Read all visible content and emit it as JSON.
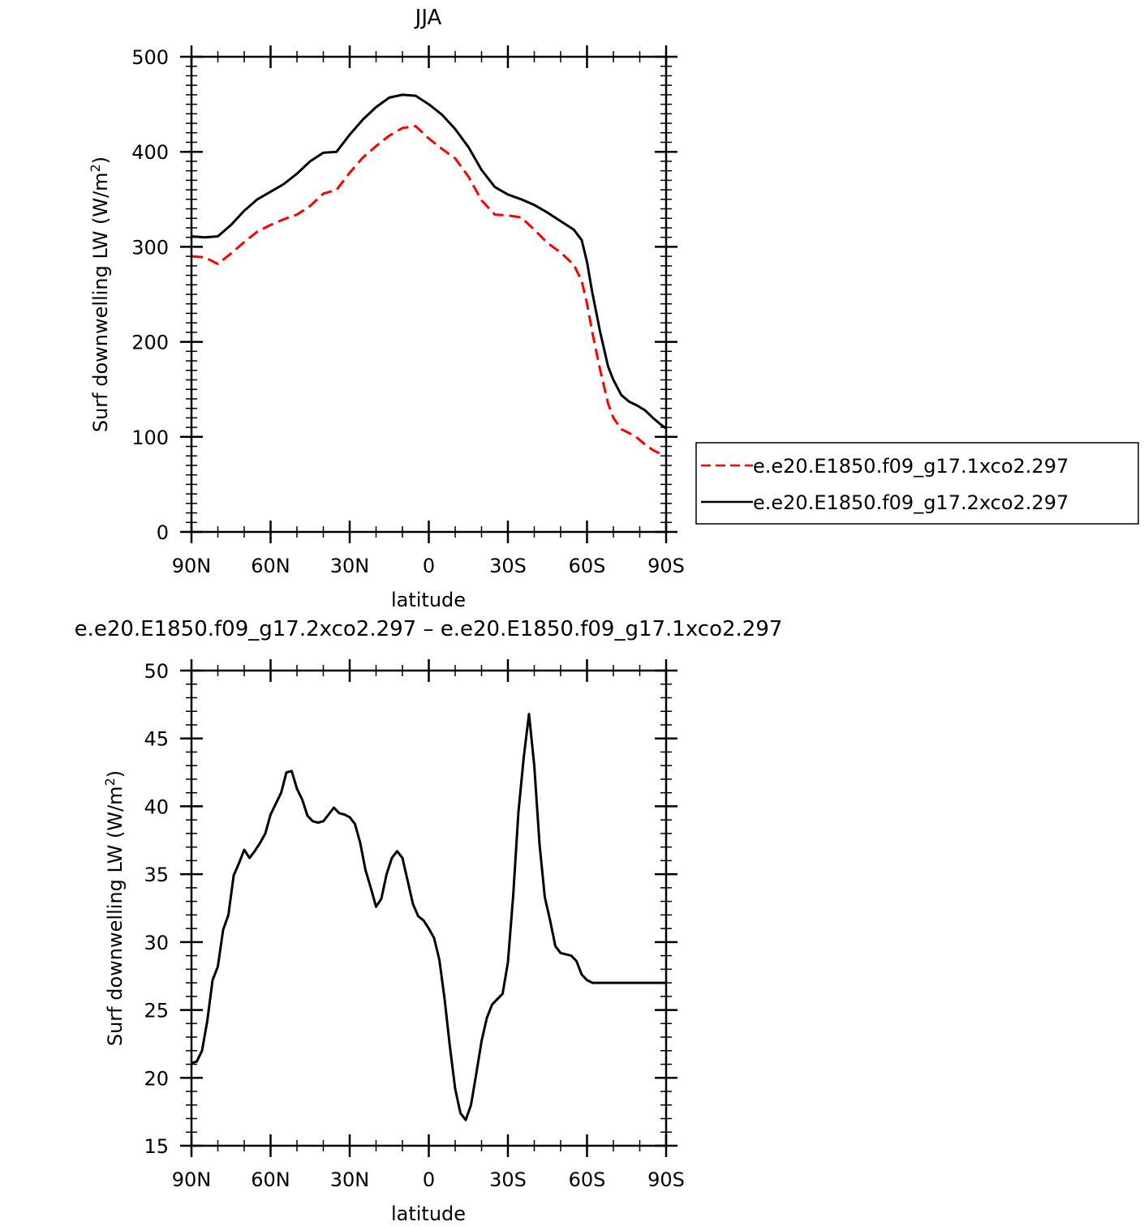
{
  "chart_data": [
    {
      "type": "line",
      "title": "JJA",
      "xlabel": "latitude",
      "ylabel": "Surf downwelling LW (W/m",
      "ylabel_sup": "2",
      "ylabel_close": ")",
      "xlim": [
        90,
        -90
      ],
      "ylim": [
        0,
        500
      ],
      "yticks": [
        0,
        100,
        200,
        300,
        400,
        500
      ],
      "xticks": [
        90,
        60,
        30,
        0,
        -30,
        -60,
        -90
      ],
      "xtick_labels": [
        "90N",
        "60N",
        "30N",
        "0",
        "30S",
        "60S",
        "90S"
      ],
      "legend_position": "right",
      "series": [
        {
          "name": "e.e20.E1850.f09_g17.1xco2.297",
          "color": "#ff0000",
          "dash": "dashed",
          "x": [
            90,
            85,
            80,
            75,
            70,
            65,
            60,
            55,
            50,
            45,
            40,
            35,
            30,
            25,
            20,
            15,
            10,
            5,
            0,
            -5,
            -10,
            -15,
            -20,
            -25,
            -30,
            -35,
            -40,
            -45,
            -50,
            -55,
            -58,
            -60,
            -62,
            -65,
            -68,
            -70,
            -73,
            -76,
            -79,
            -82,
            -85,
            -88,
            -90
          ],
          "y": [
            290,
            289,
            282,
            293,
            305,
            316,
            323,
            329,
            334,
            343,
            356,
            360,
            378,
            394,
            406,
            417,
            425,
            427,
            414,
            403,
            393,
            374,
            349,
            334,
            333,
            331,
            318,
            304,
            294,
            281,
            264,
            240,
            210,
            170,
            135,
            120,
            108,
            104,
            99,
            92,
            86,
            82,
            80
          ]
        },
        {
          "name": "e.e20.E1850.f09_g17.2xco2.297",
          "color": "#000000",
          "dash": "solid",
          "x": [
            90,
            85,
            80,
            75,
            70,
            65,
            60,
            55,
            50,
            45,
            40,
            35,
            30,
            25,
            20,
            15,
            10,
            5,
            0,
            -5,
            -10,
            -15,
            -20,
            -25,
            -30,
            -35,
            -40,
            -45,
            -50,
            -55,
            -58,
            -60,
            -62,
            -65,
            -68,
            -70,
            -73,
            -76,
            -79,
            -82,
            -85,
            -88,
            -90
          ],
          "y": [
            311,
            310,
            311,
            323,
            338,
            350,
            358,
            366,
            377,
            390,
            399,
            400,
            418,
            434,
            447,
            457,
            460,
            459,
            450,
            439,
            424,
            405,
            381,
            363,
            355,
            350,
            344,
            336,
            327,
            318,
            307,
            284,
            252,
            210,
            174,
            160,
            144,
            137,
            133,
            128,
            120,
            113,
            109
          ]
        }
      ]
    },
    {
      "type": "line",
      "title": "e.e20.E1850.f09_g17.2xco2.297 – e.e20.E1850.f09_g17.1xco2.297",
      "xlabel": "latitude",
      "ylabel": "Surf downwelling LW (W/m",
      "ylabel_sup": "2",
      "ylabel_close": ")",
      "xlim": [
        90,
        -90
      ],
      "ylim": [
        15,
        50
      ],
      "yticks": [
        15,
        20,
        25,
        30,
        35,
        40,
        45,
        50
      ],
      "xticks": [
        90,
        60,
        30,
        0,
        -30,
        -60,
        -90
      ],
      "xtick_labels": [
        "90N",
        "60N",
        "30N",
        "0",
        "30S",
        "60S",
        "90S"
      ],
      "series": [
        {
          "color": "#000000",
          "dash": "solid",
          "x": [
            90,
            88,
            86,
            84,
            82,
            80,
            78,
            76,
            74,
            72,
            70,
            68,
            66,
            64,
            62,
            60,
            58,
            56,
            54,
            52,
            50,
            48,
            46,
            44,
            42,
            40,
            38,
            36,
            34,
            32,
            30,
            28,
            26,
            24,
            22,
            20,
            18,
            16,
            14,
            12,
            10,
            8,
            6,
            4,
            2,
            0,
            -2,
            -4,
            -6,
            -8,
            -10,
            -12,
            -14,
            -16,
            -18,
            -20,
            -22,
            -24,
            -26,
            -28,
            -30,
            -32,
            -34,
            -36,
            -38,
            -40,
            -42,
            -44,
            -46,
            -48,
            -50,
            -52,
            -54,
            -56,
            -58,
            -60,
            -62,
            -64,
            -66,
            -68,
            -70,
            -72,
            -74,
            -76,
            -78,
            -80,
            -82,
            -84,
            -86,
            -88,
            -90
          ],
          "y": [
            21.1,
            21.2,
            22.0,
            24.2,
            27.2,
            28.2,
            30.9,
            32.0,
            34.9,
            35.8,
            36.8,
            36.2,
            36.7,
            37.3,
            38.0,
            39.4,
            40.2,
            41.0,
            42.5,
            42.6,
            41.3,
            40.5,
            39.3,
            38.9,
            38.8,
            38.9,
            39.4,
            39.9,
            39.5,
            39.4,
            39.2,
            38.7,
            37.3,
            35.3,
            34.0,
            32.6,
            33.2,
            35.0,
            36.2,
            36.7,
            36.2,
            34.5,
            32.8,
            31.9,
            31.6,
            31.0,
            30.3,
            28.7,
            25.8,
            22.3,
            19.2,
            17.4,
            16.9,
            18.0,
            20.3,
            22.7,
            24.4,
            25.4,
            25.8,
            26.2,
            28.5,
            33.4,
            39.6,
            43.6,
            46.8,
            43.0,
            37.2,
            33.3,
            31.6,
            29.7,
            29.2,
            29.1,
            29.0,
            28.6,
            27.6,
            27.2,
            27.0,
            27.0,
            27.0,
            27.0,
            27.0,
            27.0,
            27.0,
            27.0,
            27.0,
            27.0,
            27.0,
            27.0,
            27.0,
            27.0,
            27.0
          ]
        }
      ]
    }
  ]
}
